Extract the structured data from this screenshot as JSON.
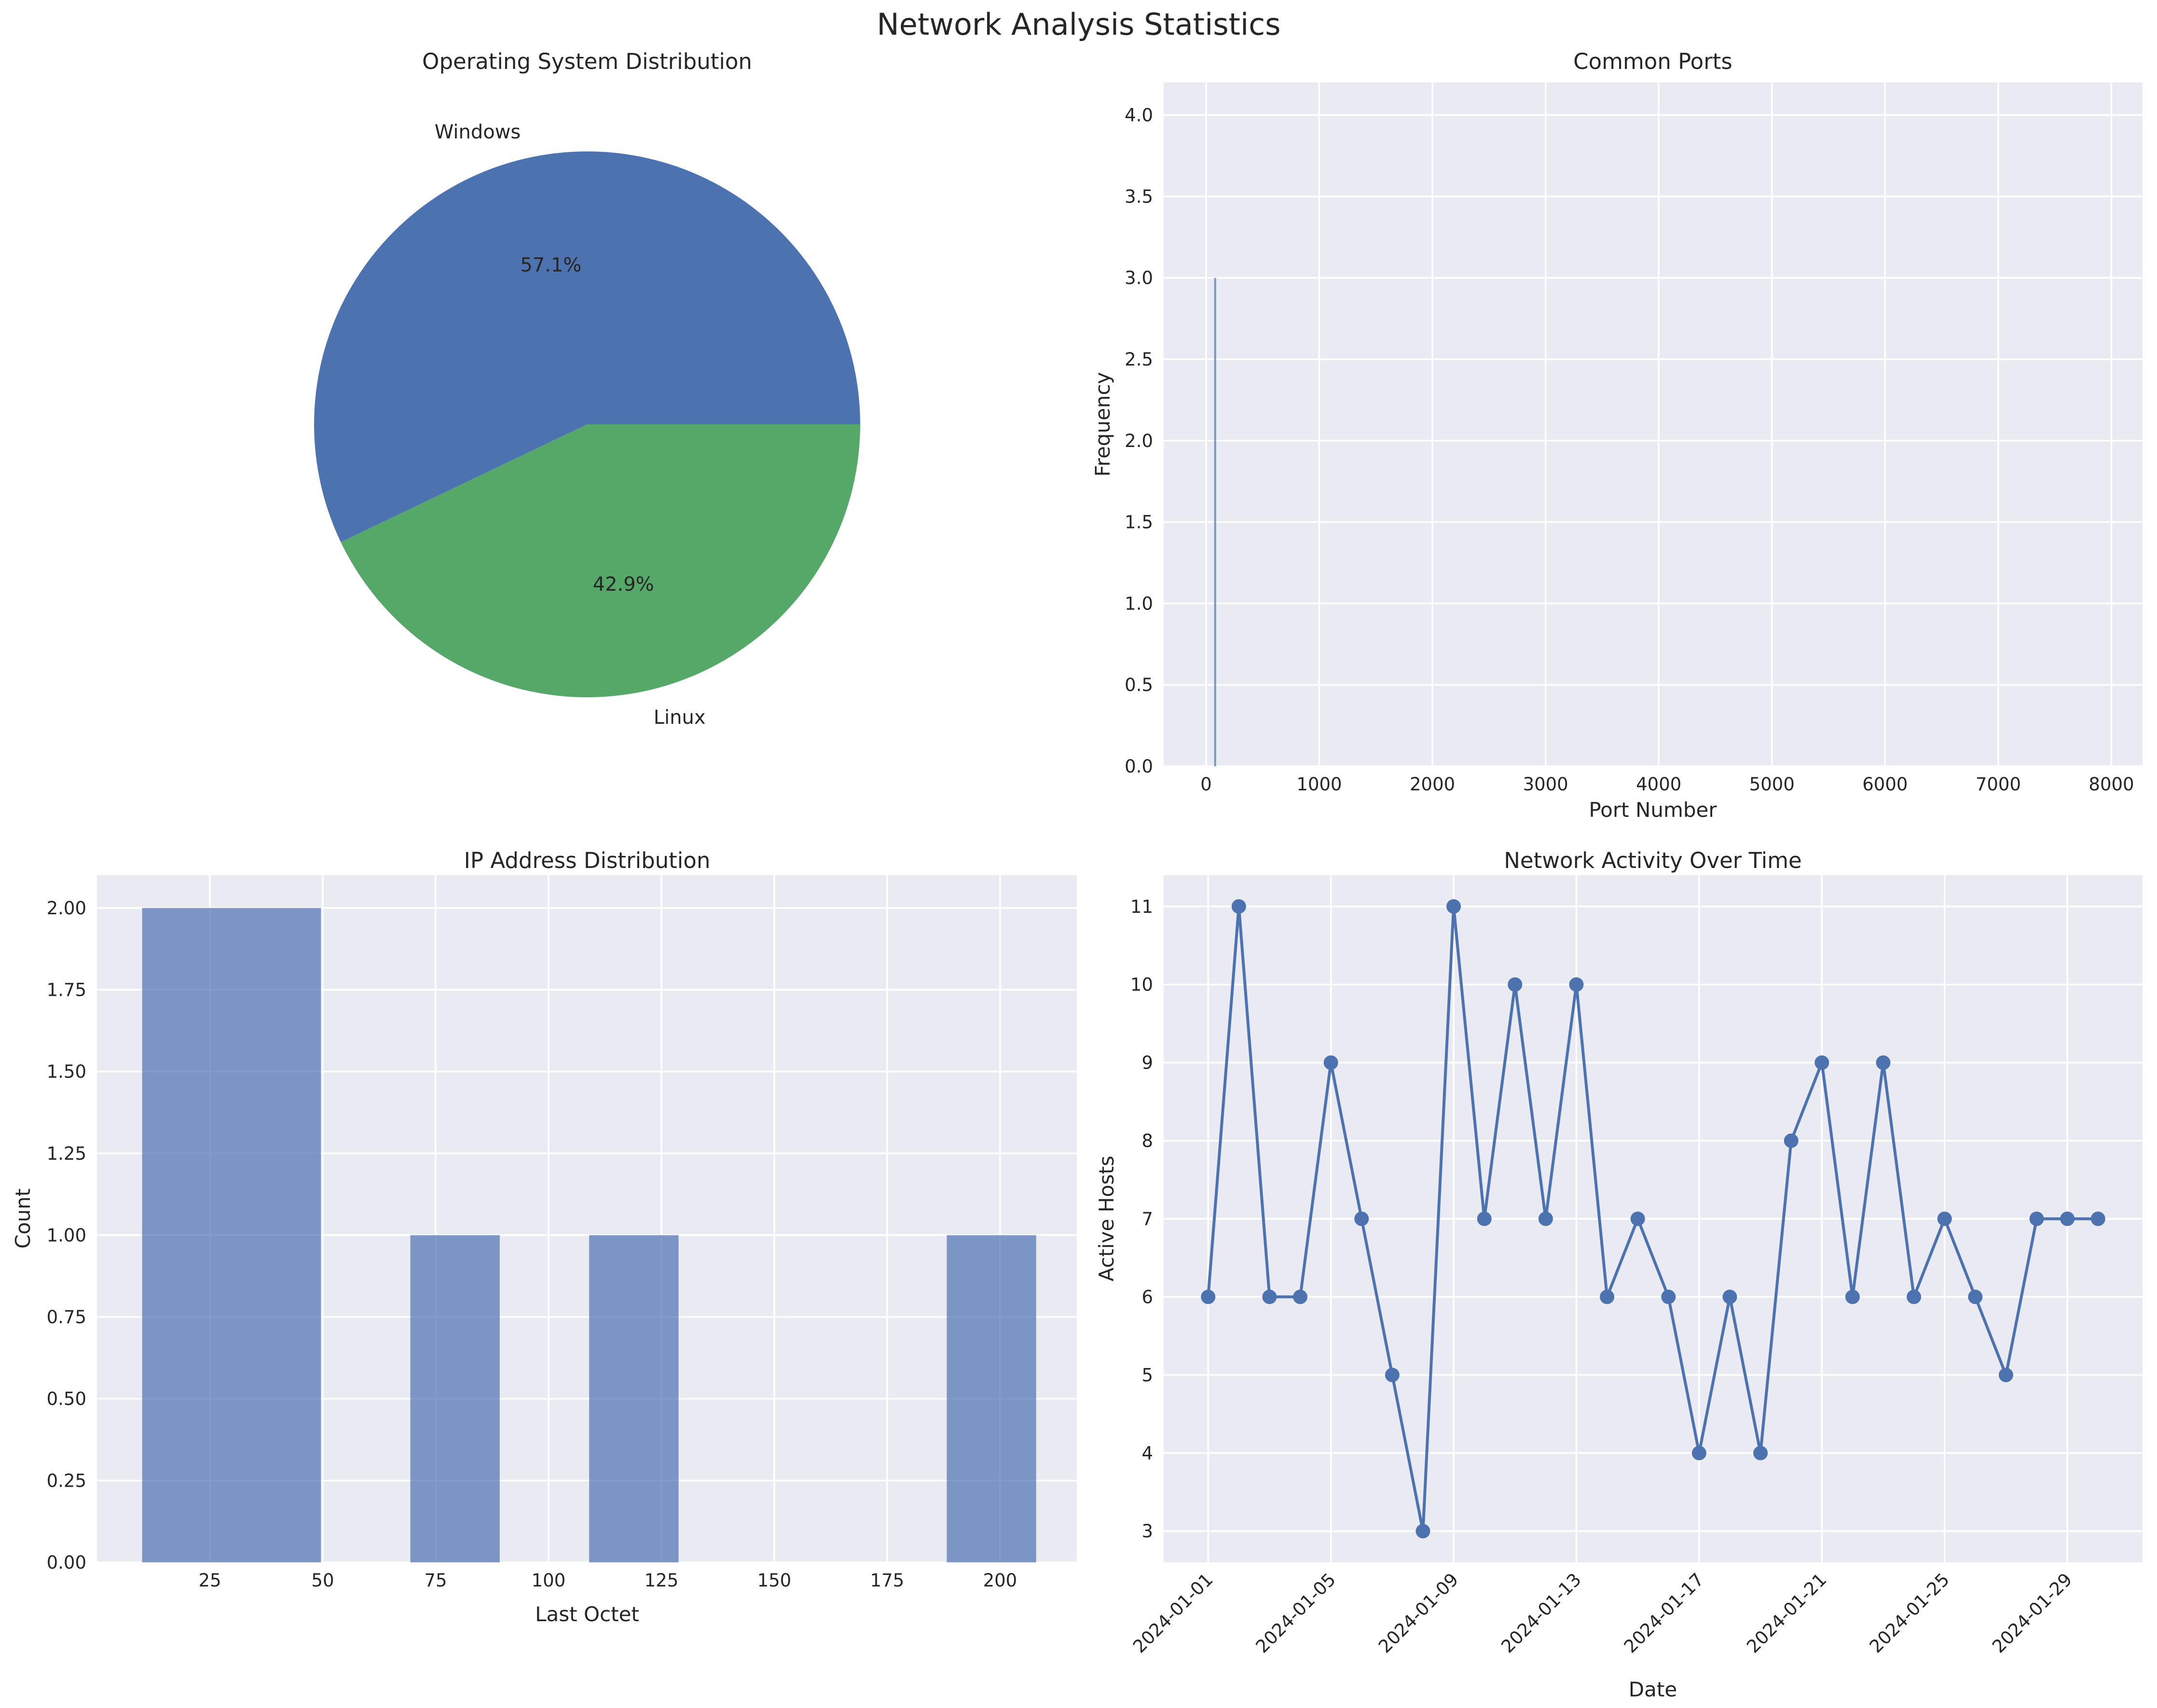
{
  "figure": {
    "title": "Network Analysis Statistics"
  },
  "chart_data": [
    {
      "type": "pie",
      "title": "Operating System Distribution",
      "labels": [
        "Windows",
        "Linux"
      ],
      "percentages": [
        57.1,
        42.9
      ],
      "pct_labels": [
        "57.1%",
        "42.9%"
      ],
      "counts": [
        4,
        3
      ],
      "colors": [
        "#4c72b0",
        "#55a868"
      ]
    },
    {
      "type": "bar",
      "title": "Common Ports",
      "xlabel": "Port Number",
      "ylabel": "Frequency",
      "xlim": [
        -375,
        8275
      ],
      "ylim": [
        0,
        4.2
      ],
      "xticks": [
        0,
        1000,
        2000,
        3000,
        4000,
        5000,
        6000,
        7000,
        8000
      ],
      "xtick_labels": [
        "0",
        "1000",
        "2000",
        "3000",
        "4000",
        "5000",
        "6000",
        "7000",
        "8000"
      ],
      "yticks": [
        0,
        0.5,
        1,
        1.5,
        2,
        2.5,
        3,
        3.5,
        4
      ],
      "ytick_labels": [
        "0.0",
        "0.5",
        "1.0",
        "1.5",
        "2.0",
        "2.5",
        "3.0",
        "3.5",
        "4.0"
      ],
      "bars": [
        {
          "x": 80,
          "value": 3
        }
      ],
      "bar_color": "#4c72b0"
    },
    {
      "type": "bar",
      "title": "IP Address Distribution",
      "xlabel": "Last Octet",
      "ylabel": "Count",
      "xlim": [
        0,
        217
      ],
      "ylim": [
        0,
        2.1
      ],
      "xticks": [
        25,
        50,
        75,
        100,
        125,
        150,
        175,
        200
      ],
      "xtick_labels": [
        "25",
        "50",
        "75",
        "100",
        "125",
        "150",
        "175",
        "200"
      ],
      "yticks": [
        0,
        0.25,
        0.5,
        0.75,
        1,
        1.25,
        1.5,
        1.75,
        2
      ],
      "ytick_labels": [
        "0.00",
        "0.25",
        "0.50",
        "0.75",
        "1.00",
        "1.25",
        "1.50",
        "1.75",
        "2.00"
      ],
      "bins": [
        {
          "start": 10,
          "end": 49.6,
          "value": 2
        },
        {
          "start": 69.4,
          "end": 89.2,
          "value": 1
        },
        {
          "start": 109,
          "end": 128.8,
          "value": 1
        },
        {
          "start": 188.2,
          "end": 208,
          "value": 1
        }
      ],
      "bar_color": "#4c72b0",
      "bar_alpha": 0.7
    },
    {
      "type": "line",
      "title": "Network Activity Over Time",
      "xlabel": "Date",
      "ylabel": "Active Hosts",
      "x": [
        "2024-01-01",
        "2024-01-02",
        "2024-01-03",
        "2024-01-04",
        "2024-01-05",
        "2024-01-06",
        "2024-01-07",
        "2024-01-08",
        "2024-01-09",
        "2024-01-10",
        "2024-01-11",
        "2024-01-12",
        "2024-01-13",
        "2024-01-14",
        "2024-01-15",
        "2024-01-16",
        "2024-01-17",
        "2024-01-18",
        "2024-01-19",
        "2024-01-20",
        "2024-01-21",
        "2024-01-22",
        "2024-01-23",
        "2024-01-24",
        "2024-01-25",
        "2024-01-26",
        "2024-01-27",
        "2024-01-28",
        "2024-01-29",
        "2024-01-30"
      ],
      "values": [
        6,
        11,
        6,
        6,
        9,
        7,
        5,
        3,
        11,
        7,
        10,
        7,
        10,
        6,
        7,
        6,
        4,
        6,
        4,
        8,
        9,
        6,
        9,
        6,
        7,
        6,
        5,
        7,
        7,
        7
      ],
      "xlim": [
        "2023-12-30T13:12",
        "2024-01-31T10:48"
      ],
      "ylim": [
        2.6,
        11.4
      ],
      "xticks": [
        "2024-01-01",
        "2024-01-05",
        "2024-01-09",
        "2024-01-13",
        "2024-01-17",
        "2024-01-21",
        "2024-01-25",
        "2024-01-29"
      ],
      "yticks": [
        3,
        4,
        5,
        6,
        7,
        8,
        9,
        10,
        11
      ],
      "ytick_labels": [
        "3",
        "4",
        "5",
        "6",
        "7",
        "8",
        "9",
        "10",
        "11"
      ],
      "color": "#4c72b0",
      "marker": "circle"
    }
  ]
}
